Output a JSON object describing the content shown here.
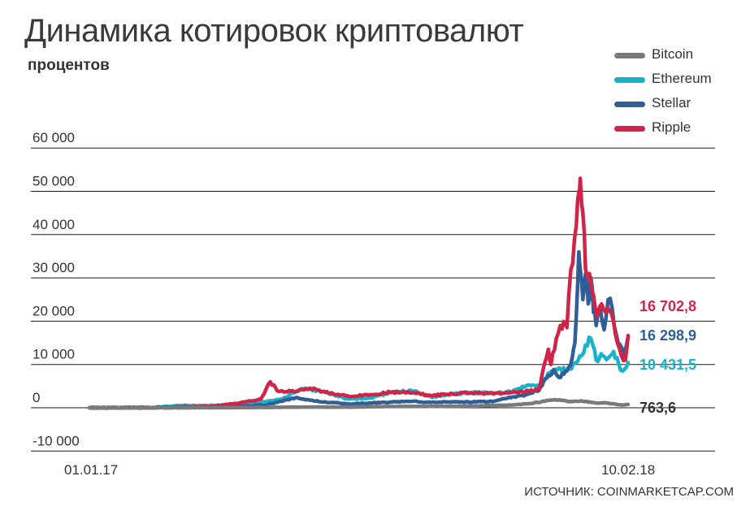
{
  "header": {
    "title": "Динамика котировок криптовалют",
    "subtitle": "процентов"
  },
  "source": "ИСТОЧНИК: COINMARKETCAP.COM",
  "chart_data": {
    "type": "line",
    "title": "Динамика котировок криптовалют",
    "ylabel": "процентов",
    "xlabel": "",
    "x_start": "01.01.17",
    "x_end": "10.02.18",
    "x_tick_labels": [
      "01.01.17",
      "10.02.18"
    ],
    "y_ticks": [
      -10000,
      0,
      10000,
      20000,
      30000,
      40000,
      50000,
      60000
    ],
    "y_tick_labels": [
      "-10 000",
      "0",
      "10 000",
      "20 000",
      "30 000",
      "40 000",
      "50 000",
      "60 000"
    ],
    "ylim": [
      -10000,
      60000
    ],
    "grid": true,
    "legend_position": "top-right",
    "series": [
      {
        "name": "Bitcoin",
        "color": "#7a7a7a",
        "end_value": 763.6,
        "end_label": "763,6",
        "points": [
          [
            "2017-01-01",
            0
          ],
          [
            "2017-03-01",
            5
          ],
          [
            "2017-04-15",
            20
          ],
          [
            "2017-05-15",
            90
          ],
          [
            "2017-06-15",
            170
          ],
          [
            "2017-07-15",
            150
          ],
          [
            "2017-08-15",
            300
          ],
          [
            "2017-09-15",
            320
          ],
          [
            "2017-10-15",
            420
          ],
          [
            "2017-11-15",
            650
          ],
          [
            "2017-11-28",
            980
          ],
          [
            "2017-12-07",
            1400
          ],
          [
            "2017-12-17",
            1900
          ],
          [
            "2017-12-28",
            1450
          ],
          [
            "2018-01-06",
            1600
          ],
          [
            "2018-01-16",
            1150
          ],
          [
            "2018-01-25",
            1080
          ],
          [
            "2018-02-05",
            630
          ],
          [
            "2018-02-10",
            763.6
          ]
        ]
      },
      {
        "name": "Ethereum",
        "color": "#19b3c9",
        "end_value": 10431.5,
        "end_label": "10 431,5",
        "points": [
          [
            "2017-01-01",
            0
          ],
          [
            "2017-02-15",
            30
          ],
          [
            "2017-03-10",
            500
          ],
          [
            "2017-04-01",
            500
          ],
          [
            "2017-05-01",
            800
          ],
          [
            "2017-05-25",
            2000
          ],
          [
            "2017-06-12",
            4500
          ],
          [
            "2017-06-25",
            3700
          ],
          [
            "2017-07-15",
            2000
          ],
          [
            "2017-08-01",
            2300
          ],
          [
            "2017-08-15",
            3500
          ],
          [
            "2017-08-31",
            4000
          ],
          [
            "2017-09-15",
            2500
          ],
          [
            "2017-10-01",
            3200
          ],
          [
            "2017-10-15",
            3500
          ],
          [
            "2017-11-01",
            3400
          ],
          [
            "2017-11-15",
            3700
          ],
          [
            "2017-11-25",
            5000
          ],
          [
            "2017-12-05",
            5200
          ],
          [
            "2017-12-13",
            8000
          ],
          [
            "2017-12-20",
            9200
          ],
          [
            "2017-12-26",
            8500
          ],
          [
            "2018-01-02",
            10500
          ],
          [
            "2018-01-06",
            12000
          ],
          [
            "2018-01-09",
            14500
          ],
          [
            "2018-01-13",
            16000
          ],
          [
            "2018-01-17",
            11000
          ],
          [
            "2018-01-22",
            12000
          ],
          [
            "2018-01-26",
            11500
          ],
          [
            "2018-01-30",
            13000
          ],
          [
            "2018-02-03",
            10000
          ],
          [
            "2018-02-06",
            8500
          ],
          [
            "2018-02-10",
            10431.5
          ]
        ]
      },
      {
        "name": "Stellar",
        "color": "#2f5f96",
        "end_value": 16298.9,
        "end_label": "16 298,9",
        "points": [
          [
            "2017-01-01",
            0
          ],
          [
            "2017-02-15",
            20
          ],
          [
            "2017-03-20",
            100
          ],
          [
            "2017-04-20",
            200
          ],
          [
            "2017-05-15",
            700
          ],
          [
            "2017-05-25",
            1500
          ],
          [
            "2017-06-05",
            2300
          ],
          [
            "2017-06-15",
            1800
          ],
          [
            "2017-07-01",
            1200
          ],
          [
            "2017-07-15",
            900
          ],
          [
            "2017-08-01",
            1100
          ],
          [
            "2017-08-15",
            1300
          ],
          [
            "2017-09-01",
            1500
          ],
          [
            "2017-09-15",
            1200
          ],
          [
            "2017-10-01",
            1400
          ],
          [
            "2017-10-15",
            1300
          ],
          [
            "2017-11-01",
            1500
          ],
          [
            "2017-11-15",
            2500
          ],
          [
            "2017-11-25",
            3000
          ],
          [
            "2017-12-05",
            4000
          ],
          [
            "2017-12-12",
            7500
          ],
          [
            "2017-12-16",
            8800
          ],
          [
            "2017-12-20",
            7000
          ],
          [
            "2017-12-26",
            8500
          ],
          [
            "2017-12-30",
            11500
          ],
          [
            "2018-01-01",
            15000
          ],
          [
            "2018-01-03",
            28000
          ],
          [
            "2018-01-04",
            36000
          ],
          [
            "2018-01-05",
            32000
          ],
          [
            "2018-01-07",
            25000
          ],
          [
            "2018-01-09",
            31000
          ],
          [
            "2018-01-11",
            24000
          ],
          [
            "2018-01-13",
            30000
          ],
          [
            "2018-01-15",
            22000
          ],
          [
            "2018-01-17",
            19000
          ],
          [
            "2018-01-20",
            23000
          ],
          [
            "2018-01-23",
            18000
          ],
          [
            "2018-01-26",
            25000
          ],
          [
            "2018-01-29",
            23000
          ],
          [
            "2018-02-01",
            17000
          ],
          [
            "2018-02-04",
            14500
          ],
          [
            "2018-02-07",
            12000
          ],
          [
            "2018-02-10",
            16298.9
          ]
        ]
      },
      {
        "name": "Ripple",
        "color": "#d02448",
        "end_value": 16702.8,
        "end_label": "16 702,8",
        "points": [
          [
            "2017-01-01",
            0
          ],
          [
            "2017-02-15",
            50
          ],
          [
            "2017-03-15",
            200
          ],
          [
            "2017-04-05",
            400
          ],
          [
            "2017-04-25",
            1200
          ],
          [
            "2017-05-10",
            2000
          ],
          [
            "2017-05-17",
            6000
          ],
          [
            "2017-05-22",
            4000
          ],
          [
            "2017-05-30",
            3700
          ],
          [
            "2017-06-10",
            4200
          ],
          [
            "2017-06-20",
            4300
          ],
          [
            "2017-07-01",
            3400
          ],
          [
            "2017-07-15",
            2600
          ],
          [
            "2017-08-01",
            3000
          ],
          [
            "2017-08-15",
            3600
          ],
          [
            "2017-09-01",
            3500
          ],
          [
            "2017-09-15",
            2800
          ],
          [
            "2017-10-01",
            3200
          ],
          [
            "2017-10-15",
            3500
          ],
          [
            "2017-11-01",
            3200
          ],
          [
            "2017-11-15",
            3600
          ],
          [
            "2017-11-28",
            3800
          ],
          [
            "2017-12-05",
            4200
          ],
          [
            "2017-12-12",
            13500
          ],
          [
            "2017-12-14",
            10000
          ],
          [
            "2017-12-18",
            16000
          ],
          [
            "2017-12-21",
            19000
          ],
          [
            "2017-12-26",
            18500
          ],
          [
            "2017-12-29",
            32000
          ],
          [
            "2018-01-02",
            42000
          ],
          [
            "2018-01-04",
            50000
          ],
          [
            "2018-01-05",
            53000
          ],
          [
            "2018-01-07",
            45000
          ],
          [
            "2018-01-09",
            32000
          ],
          [
            "2018-01-12",
            31000
          ],
          [
            "2018-01-15",
            26000
          ],
          [
            "2018-01-18",
            21000
          ],
          [
            "2018-01-21",
            24000
          ],
          [
            "2018-01-24",
            22000
          ],
          [
            "2018-01-27",
            22500
          ],
          [
            "2018-01-30",
            20000
          ],
          [
            "2018-02-02",
            15000
          ],
          [
            "2018-02-05",
            12000
          ],
          [
            "2018-02-08",
            11000
          ],
          [
            "2018-02-10",
            16702.8
          ]
        ]
      }
    ]
  }
}
